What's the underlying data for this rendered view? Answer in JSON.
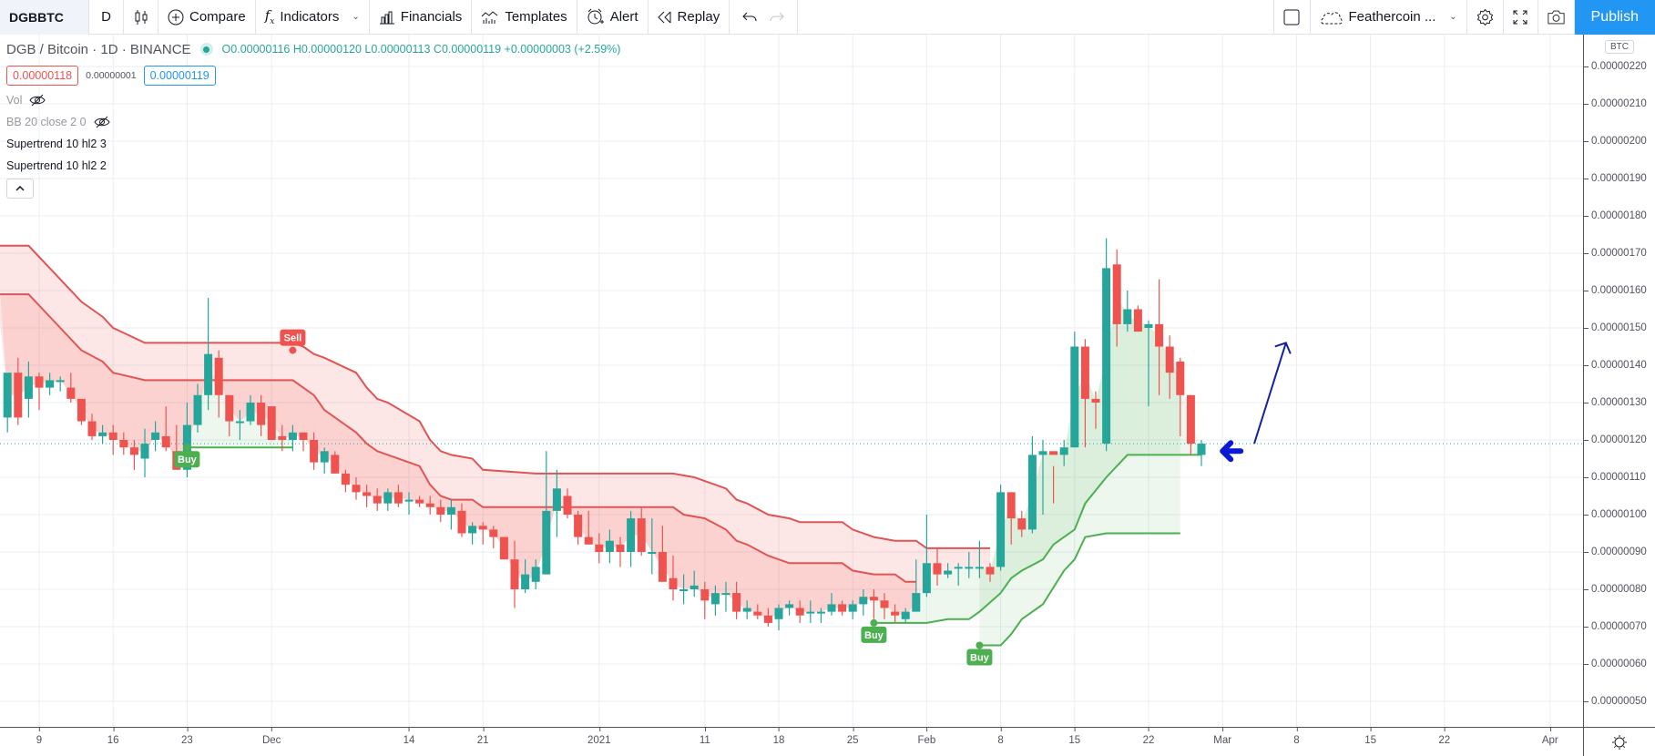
{
  "toolbar": {
    "symbol": "DGBBTC",
    "interval": "D",
    "compare": "Compare",
    "indicators": "Indicators",
    "financials": "Financials",
    "templates": "Templates",
    "alert": "Alert",
    "replay": "Replay",
    "layout_name": "Feathercoin ...",
    "publish": "Publish"
  },
  "legend": {
    "title": "DGB / Bitcoin · 1D · BINANCE",
    "ohlc": "O0.00000116 H0.00000120 L0.00000113 C0.00000119 +0.00000003 (+2.59%)",
    "sell_price": "0.00000118",
    "spread": "0.00000001",
    "buy_price": "0.00000119",
    "indicators": [
      {
        "label": "Vol",
        "hidden": true
      },
      {
        "label": "BB 20 close 2 0",
        "hidden": true
      },
      {
        "label": "Supertrend 10 hl2 3",
        "hidden": false
      },
      {
        "label": "Supertrend 10 hl2 2",
        "hidden": false
      }
    ]
  },
  "price_axis": {
    "currency": "BTC",
    "ticks": [
      "0.00000220",
      "0.00000210",
      "0.00000200",
      "0.00000190",
      "0.00000180",
      "0.00000170",
      "0.00000160",
      "0.00000150",
      "0.00000140",
      "0.00000130",
      "0.00000120",
      "0.00000110",
      "0.00000100",
      "0.00000090",
      "0.00000080",
      "0.00000070",
      "0.00000060",
      "0.00000050"
    ]
  },
  "time_axis": {
    "labels": [
      {
        "text": "9",
        "day": 0
      },
      {
        "text": "16",
        "day": 7
      },
      {
        "text": "23",
        "day": 14
      },
      {
        "text": "Dec",
        "day": 22
      },
      {
        "text": "14",
        "day": 35
      },
      {
        "text": "21",
        "day": 42
      },
      {
        "text": "2021",
        "day": 53
      },
      {
        "text": "11",
        "day": 63
      },
      {
        "text": "18",
        "day": 70
      },
      {
        "text": "25",
        "day": 77
      },
      {
        "text": "Feb",
        "day": 84
      },
      {
        "text": "8",
        "day": 91
      },
      {
        "text": "15",
        "day": 98
      },
      {
        "text": "22",
        "day": 105
      },
      {
        "text": "Mar",
        "day": 112
      },
      {
        "text": "8",
        "day": 119
      },
      {
        "text": "15",
        "day": 126
      },
      {
        "text": "22",
        "day": 133
      },
      {
        "text": "Apr",
        "day": 143
      }
    ]
  },
  "colors": {
    "up": "#26a69a",
    "down": "#ef5350",
    "supertrend_down": "#e05454",
    "supertrend_up": "#4caf50",
    "fill_down": "rgba(239,83,80,0.14)",
    "fill_up": "rgba(76,175,80,0.10)",
    "grid": "#e8edf3",
    "arrow": "#0a19d6",
    "trendline": "#1520a6"
  },
  "signals": [
    {
      "label": "Buy",
      "day": 14,
      "price": 118,
      "type": "buy"
    },
    {
      "label": "Sell",
      "day": 24,
      "price": 144,
      "type": "sell"
    },
    {
      "label": "Buy",
      "day": 79,
      "price": 71,
      "type": "buy"
    },
    {
      "label": "Buy",
      "day": 89,
      "price": 65,
      "type": "buy"
    }
  ],
  "chart_data": {
    "type": "candlestick",
    "title": "DGB / Bitcoin · 1D · BINANCE",
    "ylabel": "BTC",
    "ylim": [
      4.5e-07,
      2.28e-06
    ],
    "price_unit": "1e-8 BTC",
    "x_start": "Nov 9",
    "candles": [
      [
        -3,
        126,
        132,
        122,
        138
      ],
      [
        -2,
        138,
        142,
        124,
        126
      ],
      [
        -1,
        131,
        141,
        126,
        137
      ],
      [
        0,
        137,
        138,
        128,
        134
      ],
      [
        1,
        134,
        138,
        132,
        136
      ],
      [
        2,
        136,
        137,
        133,
        136
      ],
      [
        3,
        134,
        138,
        130,
        131
      ],
      [
        4,
        131,
        131,
        124,
        125
      ],
      [
        5,
        125,
        127,
        120,
        121
      ],
      [
        6,
        121,
        124,
        119,
        122
      ],
      [
        7,
        122,
        124,
        116,
        120
      ],
      [
        8,
        120,
        122,
        116,
        118
      ],
      [
        9,
        118,
        120,
        112,
        116
      ],
      [
        10,
        115,
        123,
        110,
        119
      ],
      [
        11,
        120,
        125,
        117,
        122
      ],
      [
        12,
        121,
        129,
        117,
        118
      ],
      [
        13,
        117,
        124,
        112,
        112
      ],
      [
        14,
        112,
        130,
        110,
        124
      ],
      [
        15,
        124,
        135,
        122,
        132
      ],
      [
        16,
        132,
        158,
        128,
        143
      ],
      [
        17,
        142,
        144,
        126,
        132
      ],
      [
        18,
        132,
        132,
        121,
        125
      ],
      [
        19,
        125,
        128,
        120,
        125
      ],
      [
        20,
        125,
        132,
        124,
        130
      ],
      [
        21,
        130,
        132,
        121,
        124
      ],
      [
        22,
        129,
        129,
        120,
        120
      ],
      [
        23,
        121,
        124,
        117,
        120
      ],
      [
        24,
        120,
        124,
        117,
        122
      ],
      [
        25,
        122,
        122,
        117,
        120
      ],
      [
        26,
        120,
        122,
        112,
        114
      ],
      [
        27,
        114,
        118,
        111,
        117
      ],
      [
        28,
        116,
        117,
        111,
        111
      ],
      [
        29,
        111,
        112,
        106,
        108
      ],
      [
        30,
        108,
        110,
        104,
        106
      ],
      [
        31,
        106,
        108,
        102,
        105
      ],
      [
        32,
        105,
        107,
        101,
        103
      ],
      [
        33,
        103,
        107,
        101,
        106
      ],
      [
        34,
        106,
        108,
        102,
        103
      ],
      [
        35,
        104,
        106,
        100,
        104
      ],
      [
        36,
        104,
        105,
        102,
        103
      ],
      [
        37,
        103,
        105,
        100,
        102
      ],
      [
        38,
        102,
        104,
        98,
        100
      ],
      [
        39,
        100,
        104,
        96,
        102
      ],
      [
        40,
        101,
        103,
        94,
        95
      ],
      [
        41,
        95,
        98,
        92,
        97
      ],
      [
        42,
        97,
        98,
        92,
        96
      ],
      [
        43,
        96,
        97,
        91,
        94
      ],
      [
        44,
        94,
        94,
        88,
        88
      ],
      [
        45,
        88,
        93,
        75,
        80
      ],
      [
        46,
        80,
        88,
        79,
        84
      ],
      [
        47,
        82,
        88,
        80,
        86
      ],
      [
        48,
        84,
        117,
        84,
        101
      ],
      [
        49,
        101,
        112,
        94,
        107
      ],
      [
        50,
        105,
        107,
        99,
        100
      ],
      [
        51,
        100,
        101,
        92,
        94
      ],
      [
        52,
        94,
        101,
        92,
        92
      ],
      [
        53,
        92,
        95,
        87,
        90
      ],
      [
        54,
        90,
        96,
        87,
        93
      ],
      [
        55,
        92,
        94,
        86,
        90
      ],
      [
        56,
        90,
        101,
        86,
        99
      ],
      [
        57,
        99,
        102,
        89,
        90
      ],
      [
        58,
        90,
        99,
        84,
        90
      ],
      [
        59,
        90,
        97,
        84,
        82
      ],
      [
        60,
        83,
        89,
        77,
        80
      ],
      [
        61,
        80,
        84,
        76,
        80
      ],
      [
        62,
        80,
        85,
        78,
        81
      ],
      [
        63,
        80,
        82,
        72,
        77
      ],
      [
        64,
        76,
        81,
        73,
        79
      ],
      [
        65,
        79,
        82,
        74,
        79
      ],
      [
        66,
        79,
        82,
        72,
        74
      ],
      [
        67,
        74,
        77,
        72,
        75
      ],
      [
        68,
        74,
        76,
        72,
        73
      ],
      [
        69,
        73,
        75,
        70,
        71
      ],
      [
        70,
        72,
        76,
        69,
        75
      ],
      [
        71,
        75,
        77,
        73,
        76
      ],
      [
        72,
        75,
        77,
        71,
        73
      ],
      [
        73,
        74,
        77,
        71,
        74
      ],
      [
        74,
        74,
        75,
        71,
        74
      ],
      [
        75,
        74,
        79,
        73,
        76
      ],
      [
        76,
        76,
        77,
        73,
        74
      ],
      [
        77,
        74,
        77,
        72,
        76
      ],
      [
        78,
        76,
        80,
        73,
        78
      ],
      [
        79,
        78,
        80,
        72,
        77
      ],
      [
        80,
        77,
        79,
        72,
        75
      ],
      [
        81,
        74,
        76,
        71,
        73
      ],
      [
        82,
        72,
        75,
        71,
        74
      ],
      [
        83,
        74,
        88,
        74,
        79
      ],
      [
        84,
        79,
        100,
        78,
        87
      ],
      [
        85,
        87,
        91,
        81,
        84
      ],
      [
        86,
        84,
        87,
        83,
        85
      ],
      [
        87,
        86,
        87,
        81,
        86
      ],
      [
        88,
        86,
        90,
        83,
        86
      ],
      [
        89,
        86,
        93,
        83,
        86
      ],
      [
        90,
        86,
        87,
        82,
        84
      ],
      [
        91,
        86,
        108,
        85,
        106
      ],
      [
        92,
        106,
        106,
        92,
        99
      ],
      [
        93,
        99,
        101,
        94,
        96
      ],
      [
        94,
        96,
        121,
        95,
        116
      ],
      [
        95,
        116,
        120,
        100,
        117
      ],
      [
        96,
        117,
        113,
        103,
        116
      ],
      [
        97,
        116,
        120,
        113,
        118
      ],
      [
        98,
        118,
        149,
        118,
        145
      ],
      [
        99,
        145,
        147,
        118,
        131
      ],
      [
        100,
        131,
        133,
        123,
        130
      ],
      [
        101,
        119,
        174,
        117,
        166
      ],
      [
        102,
        167,
        171,
        145,
        151
      ],
      [
        103,
        151,
        160,
        149,
        155
      ],
      [
        104,
        155,
        156,
        149,
        149
      ],
      [
        105,
        150,
        152,
        129,
        151
      ],
      [
        106,
        151,
        163,
        132,
        145
      ],
      [
        107,
        145,
        148,
        131,
        138
      ],
      [
        108,
        141,
        142,
        121,
        132
      ],
      [
        109,
        132,
        132,
        116,
        119
      ],
      [
        110,
        116,
        120,
        113,
        119
      ]
    ],
    "supertrend_3": [
      [
        -4,
        172
      ],
      [
        -1,
        172
      ],
      [
        2,
        163
      ],
      [
        4,
        157
      ],
      [
        6,
        153
      ],
      [
        7,
        150
      ],
      [
        10,
        146
      ],
      [
        18,
        146
      ],
      [
        24,
        146
      ],
      [
        25,
        145
      ],
      [
        26,
        143
      ],
      [
        27,
        142
      ],
      [
        30,
        138
      ],
      [
        31,
        134
      ],
      [
        32,
        131
      ],
      [
        33,
        130
      ],
      [
        36,
        125
      ],
      [
        37,
        120
      ],
      [
        38,
        117
      ],
      [
        39,
        116
      ],
      [
        41,
        115
      ],
      [
        42,
        112
      ],
      [
        47,
        111
      ],
      [
        53,
        111
      ],
      [
        60,
        111
      ],
      [
        62,
        110
      ],
      [
        65,
        107
      ],
      [
        66,
        104
      ],
      [
        67,
        103
      ],
      [
        69,
        100
      ],
      [
        71,
        99
      ],
      [
        72,
        98
      ],
      [
        76,
        98
      ],
      [
        77,
        96
      ],
      [
        79,
        94
      ],
      [
        81,
        93
      ],
      [
        83,
        93
      ],
      [
        84,
        91
      ],
      [
        90,
        91
      ]
    ],
    "supertrend_2": [
      [
        -4,
        159
      ],
      [
        -1,
        159
      ],
      [
        2,
        150
      ],
      [
        4,
        144
      ],
      [
        6,
        141
      ],
      [
        7,
        138
      ],
      [
        10,
        136
      ],
      [
        18,
        136
      ],
      [
        24,
        136
      ],
      [
        26,
        132
      ],
      [
        27,
        128
      ],
      [
        30,
        122
      ],
      [
        31,
        119
      ],
      [
        32,
        117
      ],
      [
        33,
        116
      ],
      [
        36,
        113
      ],
      [
        37,
        108
      ],
      [
        38,
        105
      ],
      [
        39,
        104
      ],
      [
        41,
        104
      ],
      [
        42,
        102
      ],
      [
        47,
        102
      ],
      [
        54,
        102
      ],
      [
        60,
        102
      ],
      [
        61,
        100
      ],
      [
        63,
        99
      ],
      [
        65,
        96
      ],
      [
        66,
        93
      ],
      [
        67,
        92
      ],
      [
        69,
        89
      ],
      [
        71,
        87
      ],
      [
        72,
        87
      ],
      [
        76,
        87
      ],
      [
        77,
        85
      ],
      [
        79,
        84
      ],
      [
        81,
        84
      ],
      [
        82,
        82
      ],
      [
        83,
        82
      ]
    ],
    "supertrend_up_2": [
      [
        14,
        118
      ],
      [
        24,
        118
      ]
    ],
    "supertrend_up_3": [
      [
        79,
        71
      ],
      [
        84,
        71
      ],
      [
        86,
        72
      ],
      [
        88,
        72
      ],
      [
        89,
        74
      ],
      [
        91,
        79
      ],
      [
        92,
        83
      ],
      [
        93,
        85
      ],
      [
        95,
        88
      ],
      [
        96,
        92
      ],
      [
        97,
        94
      ],
      [
        98,
        96
      ],
      [
        99,
        103
      ],
      [
        101,
        110
      ],
      [
        103,
        116
      ],
      [
        108,
        116
      ],
      [
        110,
        116
      ]
    ],
    "supertrend_up_4": [
      [
        89,
        65
      ],
      [
        91,
        65
      ],
      [
        92,
        68
      ],
      [
        93,
        72
      ],
      [
        95,
        76
      ],
      [
        97,
        85
      ],
      [
        98,
        88
      ],
      [
        99,
        94
      ],
      [
        101,
        95
      ],
      [
        108,
        95
      ]
    ],
    "current_price": 119,
    "annotations": [
      {
        "type": "arrow",
        "direction": "left",
        "day": 112,
        "price": 117
      },
      {
        "type": "trendline",
        "from": [
          115,
          119
        ],
        "to": [
          118,
          146
        ]
      }
    ]
  }
}
